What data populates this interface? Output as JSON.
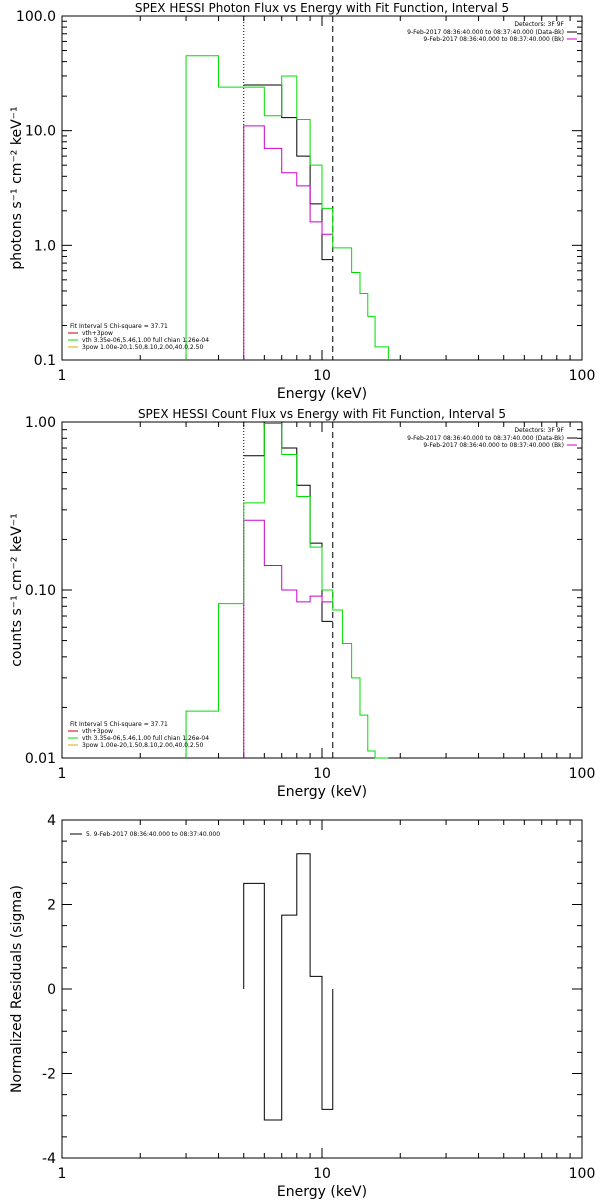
{
  "chart_data": [
    {
      "type": "line",
      "title": "SPEX HESSI Photon Flux vs Energy with Fit Function, Interval 5",
      "xlabel": "Energy (keV)",
      "ylabel": "photons s⁻¹ cm⁻² keV⁻¹",
      "xscale": "log",
      "yscale": "log",
      "xlim": [
        1,
        100
      ],
      "ylim": [
        0.1,
        100
      ],
      "xticks": [
        "1",
        "10",
        "100"
      ],
      "yticks": [
        "0.1",
        "1.0",
        "10.0",
        "100.0"
      ],
      "vlines": [
        {
          "x": 5.0,
          "style": "dotted"
        },
        {
          "x": 11.0,
          "style": "dashed"
        }
      ],
      "legend_top": {
        "header": "Detectors: 3F 9F",
        "entries": [
          {
            "text": "9-Feb-2017 08:36:40.000 to 08:37:40.000 (Data-Bk)",
            "color": "#000000"
          },
          {
            "text": "9-Feb-2017 08:36:40.000 to 08:37:40.000 (Bk)",
            "color": "#cc00cc"
          }
        ]
      },
      "legend_bottom": {
        "header": "Fit Interval 5   Chi-square = 37.71",
        "entries": [
          {
            "text": "vth+3pow",
            "color": "#cc0000"
          },
          {
            "text": "vth 3.35e-06,5.46,1.00  full chian 1.26e-04",
            "color": "#00dd00"
          },
          {
            "text": "3pow 1.00e-20,1.50,8.10,2.00,40.0,2.50",
            "color": "#ddaa00"
          }
        ]
      },
      "series": [
        {
          "color": "#000000",
          "edges": [
            5.0,
            6.0,
            7.0,
            8.0,
            9.0,
            10.0,
            11.0
          ],
          "values": [
            25,
            25,
            13,
            6,
            2.3,
            0.75
          ]
        },
        {
          "color": "#cc00cc",
          "edges": [
            5.0,
            6.0,
            7.0,
            8.0,
            9.0,
            10.0,
            11.0
          ],
          "values": [
            11,
            7,
            4.3,
            3.3,
            1.6,
            1.25
          ],
          "start_floor": true
        },
        {
          "color": "#00dd00",
          "edges": [
            3.0,
            4.0,
            5.0,
            6.0,
            7.0,
            8.0,
            9.0,
            10.0,
            11.0,
            12.0,
            13.0,
            14.0,
            15.0,
            16.0,
            18.0
          ],
          "values": [
            45,
            24,
            24,
            13.5,
            30,
            12.5,
            5.0,
            2.1,
            0.95,
            0.95,
            0.58,
            0.38,
            0.24,
            0.13
          ],
          "start_floor": true,
          "end_floor": true
        }
      ]
    },
    {
      "type": "line",
      "title": "SPEX HESSI Count Flux vs Energy with Fit Function, Interval 5",
      "xlabel": "Energy (keV)",
      "ylabel": "counts s⁻¹ cm⁻² keV⁻¹",
      "xscale": "log",
      "yscale": "log",
      "xlim": [
        1,
        100
      ],
      "ylim": [
        0.01,
        1.0
      ],
      "xticks": [
        "1",
        "10",
        "100"
      ],
      "yticks": [
        "0.01",
        "0.10",
        "1.00"
      ],
      "vlines": [
        {
          "x": 5.0,
          "style": "dotted"
        },
        {
          "x": 11.0,
          "style": "dashed"
        }
      ],
      "legend_top": {
        "header": "Detectors: 3F 9F",
        "entries": [
          {
            "text": "9-Feb-2017 08:36:40.000 to 08:37:40.000 (Data-Bk)",
            "color": "#000000"
          },
          {
            "text": "9-Feb-2017 08:36:40.000 to 08:37:40.000 (Bk)",
            "color": "#cc00cc"
          }
        ]
      },
      "legend_bottom": {
        "header": "Fit Interval 5   Chi-square = 37.71",
        "entries": [
          {
            "text": "vth+3pow",
            "color": "#cc0000"
          },
          {
            "text": "vth 3.35e-06,5.46,1.00  full chian 1.26e-04",
            "color": "#00dd00"
          },
          {
            "text": "3pow 1.00e-20,1.50,8.10,2.00,40.0,2.50",
            "color": "#ddaa00"
          }
        ]
      },
      "series": [
        {
          "color": "#000000",
          "edges": [
            5.0,
            6.0,
            7.0,
            8.0,
            9.0,
            10.0,
            11.0
          ],
          "values": [
            0.63,
            1.0,
            0.7,
            0.42,
            0.19,
            0.065
          ]
        },
        {
          "color": "#cc00cc",
          "edges": [
            5.0,
            6.0,
            7.0,
            8.0,
            9.0,
            10.0,
            11.0
          ],
          "values": [
            0.26,
            0.14,
            0.1,
            0.085,
            0.092,
            0.085
          ],
          "start_floor": true
        },
        {
          "color": "#00dd00",
          "edges": [
            3.0,
            4.0,
            5.0,
            6.0,
            7.0,
            8.0,
            9.0,
            10.0,
            11.0,
            12.0,
            13.0,
            14.0,
            15.0,
            16.0,
            18.0
          ],
          "values": [
            0.019,
            0.083,
            0.33,
            0.98,
            0.64,
            0.36,
            0.18,
            0.1,
            0.076,
            0.048,
            0.03,
            0.018,
            0.011,
            0.01
          ],
          "start_floor": true,
          "end_floor": true
        }
      ]
    },
    {
      "type": "line",
      "title": "",
      "xlabel": "Energy (keV)",
      "ylabel": "Normalized Residuals (sigma)",
      "xscale": "log",
      "yscale": "linear",
      "xlim": [
        1,
        100
      ],
      "ylim": [
        -4,
        4
      ],
      "xticks": [
        "1",
        "10",
        "100"
      ],
      "yticks": [
        "-4",
        "-2",
        "0",
        "2",
        "4"
      ],
      "legend_top": {
        "header": "",
        "entries": [
          {
            "text": "5.  9-Feb-2017 08:36:40.000 to 08:37:40.000",
            "color": "#000000"
          }
        ]
      },
      "series": [
        {
          "color": "#000000",
          "edges": [
            5.0,
            6.0,
            7.0,
            8.0,
            9.0,
            10.0,
            11.0
          ],
          "values": [
            2.5,
            -3.1,
            1.75,
            3.2,
            0.3,
            -2.85
          ],
          "start_floor": true,
          "end_floor": true
        }
      ]
    }
  ]
}
